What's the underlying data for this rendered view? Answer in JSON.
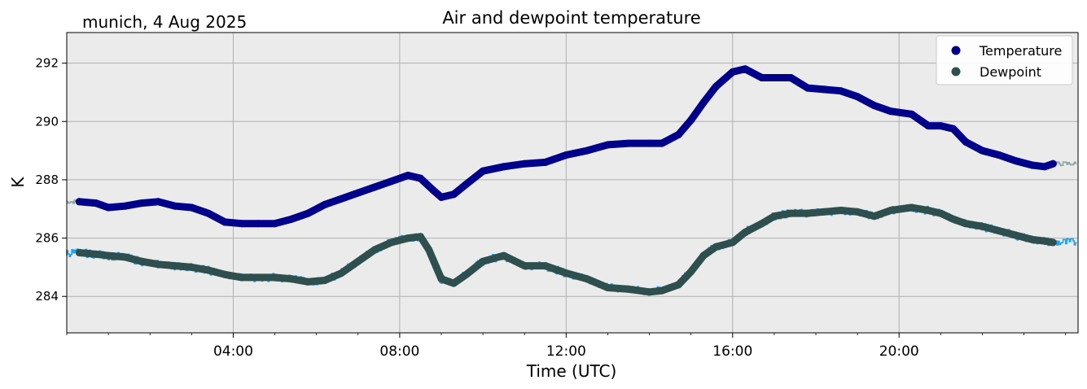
{
  "location_date": "munich, 4 Aug 2025",
  "chart_data": {
    "type": "line",
    "title": "Air and dewpoint temperature",
    "xlabel": "Time (UTC)",
    "ylabel": "K",
    "xlim": [
      0,
      24.3
    ],
    "ylim": [
      282.75,
      293.05
    ],
    "grid": true,
    "legend_position": "top-right",
    "x_ticks": [
      {
        "value": 4,
        "label": "04:00"
      },
      {
        "value": 8,
        "label": "08:00"
      },
      {
        "value": 12,
        "label": "12:00"
      },
      {
        "value": 16,
        "label": "16:00"
      },
      {
        "value": 20,
        "label": "20:00"
      }
    ],
    "y_ticks": [
      {
        "value": 284,
        "label": "284"
      },
      {
        "value": 286,
        "label": "286"
      },
      {
        "value": 288,
        "label": "288"
      },
      {
        "value": 290,
        "label": "290"
      },
      {
        "value": 292,
        "label": "292"
      }
    ],
    "colors": {
      "background": "#ebebeb",
      "grid": "#b0b0b0",
      "temperature": "#00008b",
      "temperature_raw": "#8aa8a4",
      "dewpoint": "#2f4f4f",
      "dewpoint_raw": "#29a3f0"
    },
    "series": [
      {
        "name": "Temperature",
        "x": [
          0.3,
          0.7,
          1.0,
          1.4,
          1.8,
          2.2,
          2.6,
          3.0,
          3.4,
          3.8,
          4.2,
          4.6,
          5.0,
          5.4,
          5.8,
          6.2,
          6.6,
          7.0,
          7.4,
          7.8,
          8.2,
          8.5,
          8.8,
          9.0,
          9.3,
          9.6,
          10.0,
          10.5,
          11.0,
          11.5,
          12.0,
          12.5,
          13.0,
          13.5,
          14.0,
          14.3,
          14.7,
          15.0,
          15.3,
          15.6,
          16.0,
          16.3,
          16.7,
          17.0,
          17.4,
          17.8,
          18.2,
          18.6,
          19.0,
          19.4,
          19.8,
          20.3,
          20.7,
          21.0,
          21.3,
          21.6,
          22.0,
          22.4,
          22.8,
          23.2,
          23.5,
          23.7
        ],
        "values": [
          287.25,
          287.2,
          287.05,
          287.1,
          287.2,
          287.25,
          287.1,
          287.05,
          286.85,
          286.55,
          286.5,
          286.5,
          286.5,
          286.65,
          286.85,
          287.15,
          287.35,
          287.55,
          287.75,
          287.95,
          288.15,
          288.05,
          287.65,
          287.4,
          287.5,
          287.85,
          288.3,
          288.45,
          288.55,
          288.6,
          288.85,
          289.0,
          289.2,
          289.25,
          289.25,
          289.25,
          289.55,
          290.05,
          290.65,
          291.2,
          291.7,
          291.8,
          291.5,
          291.5,
          291.5,
          291.15,
          291.1,
          291.05,
          290.85,
          290.55,
          290.35,
          290.25,
          289.85,
          289.85,
          289.75,
          289.3,
          289.0,
          288.85,
          288.65,
          288.5,
          288.45,
          288.55
        ]
      },
      {
        "name": "Dewpoint",
        "x": [
          0.3,
          0.7,
          1.0,
          1.4,
          1.8,
          2.2,
          2.6,
          3.0,
          3.4,
          3.8,
          4.2,
          4.6,
          5.0,
          5.4,
          5.8,
          6.2,
          6.6,
          7.0,
          7.4,
          7.8,
          8.2,
          8.5,
          8.7,
          9.0,
          9.3,
          9.6,
          10.0,
          10.5,
          11.0,
          11.5,
          12.0,
          12.5,
          13.0,
          13.5,
          14.0,
          14.3,
          14.7,
          15.0,
          15.3,
          15.6,
          16.0,
          16.3,
          16.7,
          17.0,
          17.4,
          17.8,
          18.2,
          18.6,
          19.0,
          19.4,
          19.8,
          20.3,
          20.7,
          21.0,
          21.3,
          21.6,
          22.0,
          22.4,
          22.8,
          23.2,
          23.5,
          23.7
        ],
        "values": [
          285.5,
          285.45,
          285.4,
          285.35,
          285.2,
          285.1,
          285.05,
          285.0,
          284.9,
          284.75,
          284.65,
          284.65,
          284.65,
          284.6,
          284.5,
          284.55,
          284.8,
          285.2,
          285.6,
          285.85,
          286.0,
          286.05,
          285.6,
          284.6,
          284.45,
          284.75,
          285.2,
          285.4,
          285.05,
          285.05,
          284.8,
          284.6,
          284.3,
          284.25,
          284.15,
          284.2,
          284.4,
          284.85,
          285.4,
          285.7,
          285.85,
          286.2,
          286.5,
          286.75,
          286.85,
          286.85,
          286.9,
          286.95,
          286.9,
          286.75,
          286.95,
          287.05,
          286.95,
          286.85,
          286.65,
          286.5,
          286.4,
          286.25,
          286.1,
          285.95,
          285.9,
          285.85
        ]
      }
    ]
  }
}
